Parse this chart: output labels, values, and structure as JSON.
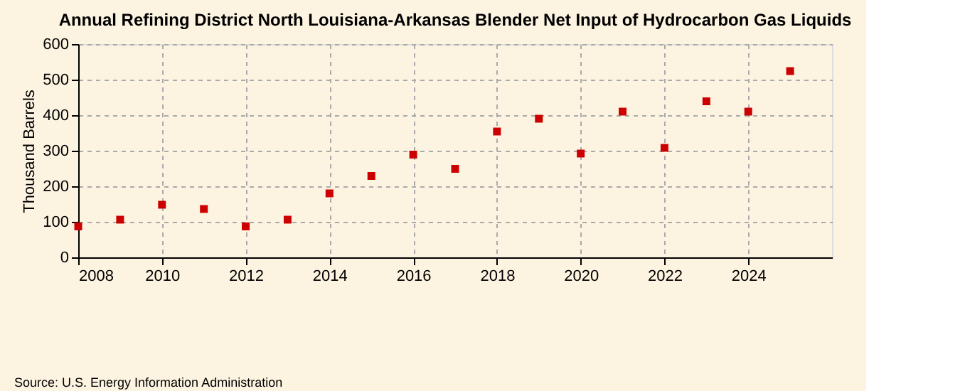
{
  "chart_data": {
    "type": "scatter",
    "title": "Annual Refining District North Louisiana-Arkansas Blender Net Input of Hydrocarbon Gas Liquids",
    "ylabel": "Thousand Barrels",
    "x": [
      2008,
      2009,
      2010,
      2011,
      2012,
      2013,
      2014,
      2015,
      2016,
      2017,
      2018,
      2019,
      2020,
      2021,
      2022,
      2023,
      2024,
      2025
    ],
    "series": [
      {
        "color": "#cc0000",
        "values": [
          87,
          106,
          148,
          136,
          87,
          106,
          180,
          229,
          289,
          249,
          354,
          390,
          292,
          410,
          308,
          439,
          410,
          524
        ]
      }
    ],
    "xlim": [
      2008,
      2026
    ],
    "xticks": [
      2008,
      2010,
      2012,
      2014,
      2016,
      2018,
      2020,
      2022,
      2024
    ],
    "ylim": [
      0,
      600
    ],
    "yticks": [
      0,
      100,
      200,
      300,
      400,
      500,
      600
    ],
    "grid": true,
    "marker": "square",
    "legend": false,
    "annotations": [
      "Source: U.S. Energy Information Administration"
    ]
  }
}
